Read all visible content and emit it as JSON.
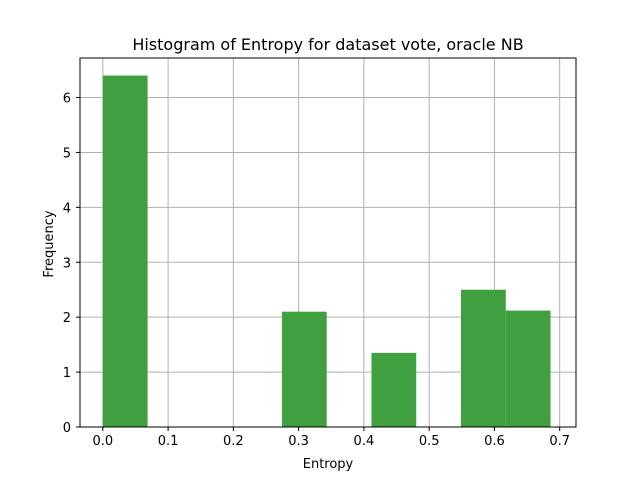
{
  "chart_data": {
    "type": "bar",
    "title": "Histogram of Entropy for dataset vote, oracle NB",
    "xlabel": "Entropy",
    "ylabel": "Frequency",
    "xlim": [
      -0.035,
      0.725
    ],
    "ylim": [
      0,
      6.72
    ],
    "grid": true,
    "bar_color": "#40a040",
    "xticks": [
      0.0,
      0.1,
      0.2,
      0.3,
      0.4,
      0.5,
      0.6,
      0.7
    ],
    "xtick_labels": [
      "0.0",
      "0.1",
      "0.2",
      "0.3",
      "0.4",
      "0.5",
      "0.6",
      "0.7"
    ],
    "yticks": [
      0,
      1,
      2,
      3,
      4,
      5,
      6
    ],
    "ytick_labels": [
      "0",
      "1",
      "2",
      "3",
      "4",
      "5",
      "6"
    ],
    "bins": [
      {
        "start": 0.0,
        "end": 0.0686,
        "value": 6.4
      },
      {
        "start": 0.0686,
        "end": 0.1372,
        "value": 0
      },
      {
        "start": 0.1372,
        "end": 0.2058,
        "value": 0
      },
      {
        "start": 0.2058,
        "end": 0.2744,
        "value": 0
      },
      {
        "start": 0.2744,
        "end": 0.343,
        "value": 2.1
      },
      {
        "start": 0.343,
        "end": 0.4116,
        "value": 0
      },
      {
        "start": 0.4116,
        "end": 0.4802,
        "value": 1.35
      },
      {
        "start": 0.4802,
        "end": 0.5488,
        "value": 0
      },
      {
        "start": 0.5488,
        "end": 0.6174,
        "value": 2.5
      },
      {
        "start": 0.6174,
        "end": 0.686,
        "value": 2.12
      }
    ]
  }
}
